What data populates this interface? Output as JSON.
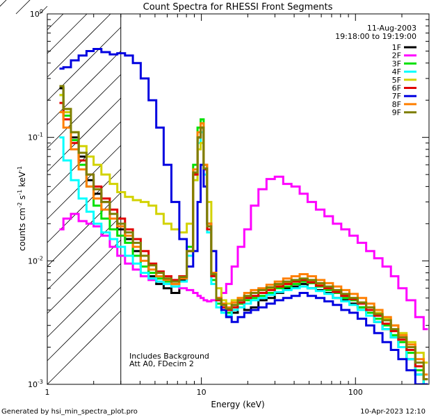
{
  "chart_data": {
    "type": "line",
    "title": "Count Spectra for RHESSI Front Segments",
    "xlabel": "Energy (keV)",
    "ylabel": "counts cm-2 s-1 keV-1",
    "ylabel_parts": [
      "counts cm",
      "-2",
      " s",
      "-1",
      " keV",
      "-1"
    ],
    "x_scale": "log",
    "y_scale": "log",
    "xlim": [
      1.0,
      300.0
    ],
    "ylim": [
      0.001,
      1.0
    ],
    "x_ticks": [
      {
        "value": 1,
        "label": "1"
      },
      {
        "value": 10,
        "label": "10"
      },
      {
        "value": 100,
        "label": "100"
      }
    ],
    "y_ticks": [
      {
        "value": 1.0,
        "base": "10",
        "exp": "0"
      },
      {
        "value": 0.1,
        "base": "10",
        "exp": "-1"
      },
      {
        "value": 0.01,
        "base": "10",
        "exp": "-2"
      },
      {
        "value": 0.001,
        "base": "10",
        "exp": "-3"
      }
    ],
    "date_label": "11-Aug-2003",
    "time_range_label": "19:18:00 to 19:19:00",
    "hatched_region": [
      1.0,
      3.0
    ],
    "annotations": [
      "Includes Background",
      "Att A0, FDecim 2"
    ],
    "series": [
      {
        "name": "1F",
        "color": "#000000",
        "x": [
          1.2,
          1.35,
          1.5,
          1.7,
          1.9,
          2.1,
          2.4,
          2.7,
          3.0,
          3.4,
          3.8,
          4.3,
          4.8,
          5.4,
          6.0,
          6.8,
          7.6,
          8.5,
          9.2,
          9.7,
          10.1,
          10.6,
          11.2,
          12,
          13,
          14,
          15,
          16.5,
          18,
          20,
          22,
          25,
          28,
          32,
          36,
          41,
          46,
          52,
          59,
          67,
          76,
          86,
          97,
          110,
          125,
          140,
          160,
          180,
          200,
          230,
          260,
          295
        ],
        "y": [
          0.25,
          0.16,
          0.1,
          0.07,
          0.045,
          0.035,
          0.03,
          0.022,
          0.018,
          0.015,
          0.012,
          0.009,
          0.0075,
          0.0065,
          0.006,
          0.0055,
          0.007,
          0.012,
          0.05,
          0.1,
          0.12,
          0.06,
          0.02,
          0.008,
          0.005,
          0.0045,
          0.004,
          0.0038,
          0.0045,
          0.004,
          0.0042,
          0.0048,
          0.005,
          0.0055,
          0.006,
          0.0062,
          0.0065,
          0.006,
          0.0058,
          0.0055,
          0.005,
          0.0048,
          0.0045,
          0.0042,
          0.0038,
          0.0032,
          0.0028,
          0.0024,
          0.002,
          0.0016,
          0.0012,
          0.001
        ]
      },
      {
        "name": "2F",
        "color": "#ff00ff",
        "x": [
          1.2,
          1.35,
          1.5,
          1.7,
          1.9,
          2.1,
          2.4,
          2.7,
          3.0,
          3.4,
          3.8,
          4.3,
          4.8,
          5.4,
          6.0,
          6.8,
          7.6,
          8.5,
          9.2,
          9.7,
          10.1,
          10.6,
          11.2,
          12,
          13,
          14,
          15,
          16.5,
          18,
          20,
          22,
          25,
          28,
          32,
          36,
          41,
          46,
          52,
          59,
          67,
          76,
          86,
          97,
          110,
          125,
          140,
          160,
          180,
          200,
          230,
          260,
          295
        ],
        "y": [
          0.018,
          0.022,
          0.024,
          0.021,
          0.02,
          0.019,
          0.016,
          0.013,
          0.011,
          0.0095,
          0.0085,
          0.0075,
          0.007,
          0.0068,
          0.0065,
          0.0062,
          0.006,
          0.0058,
          0.0055,
          0.0052,
          0.005,
          0.0048,
          0.0047,
          0.0048,
          0.005,
          0.0055,
          0.0065,
          0.009,
          0.013,
          0.018,
          0.028,
          0.038,
          0.046,
          0.048,
          0.042,
          0.04,
          0.035,
          0.03,
          0.026,
          0.023,
          0.02,
          0.018,
          0.016,
          0.014,
          0.012,
          0.0105,
          0.009,
          0.0075,
          0.006,
          0.0048,
          0.0035,
          0.0028
        ]
      },
      {
        "name": "3F",
        "color": "#00e000",
        "x": [
          1.2,
          1.35,
          1.5,
          1.7,
          1.9,
          2.1,
          2.4,
          2.7,
          3.0,
          3.4,
          3.8,
          4.3,
          4.8,
          5.4,
          6.0,
          6.8,
          7.6,
          8.5,
          9.2,
          9.7,
          10.1,
          10.6,
          11.2,
          12,
          13,
          14,
          15,
          16.5,
          18,
          20,
          22,
          25,
          28,
          32,
          36,
          41,
          46,
          52,
          59,
          67,
          76,
          86,
          97,
          110,
          125,
          140,
          160,
          180,
          200,
          230,
          260,
          295
        ],
        "y": [
          0.22,
          0.15,
          0.095,
          0.06,
          0.04,
          0.028,
          0.022,
          0.018,
          0.016,
          0.014,
          0.011,
          0.009,
          0.008,
          0.0072,
          0.0068,
          0.0065,
          0.0075,
          0.013,
          0.06,
          0.12,
          0.14,
          0.06,
          0.02,
          0.007,
          0.0045,
          0.004,
          0.0038,
          0.0042,
          0.0045,
          0.0048,
          0.005,
          0.0052,
          0.0055,
          0.006,
          0.0062,
          0.0065,
          0.0068,
          0.0066,
          0.0062,
          0.0058,
          0.0055,
          0.005,
          0.0048,
          0.0042,
          0.0038,
          0.0034,
          0.003,
          0.0025,
          0.0022,
          0.0018,
          0.0013,
          0.001
        ]
      },
      {
        "name": "4F",
        "color": "#00ffff",
        "x": [
          1.2,
          1.35,
          1.5,
          1.7,
          1.9,
          2.1,
          2.4,
          2.7,
          3.0,
          3.4,
          3.8,
          4.3,
          4.8,
          5.4,
          6.0,
          6.8,
          7.6,
          8.5,
          9.2,
          9.7,
          10.1,
          10.6,
          11.2,
          12,
          13,
          14,
          15,
          16.5,
          18,
          20,
          22,
          25,
          28,
          32,
          36,
          41,
          46,
          52,
          59,
          67,
          76,
          86,
          97,
          110,
          125,
          140,
          160,
          180,
          200,
          230,
          260,
          295
        ],
        "y": [
          0.1,
          0.065,
          0.045,
          0.032,
          0.025,
          0.02,
          0.017,
          0.015,
          0.013,
          0.011,
          0.0095,
          0.008,
          0.0072,
          0.0068,
          0.0065,
          0.0062,
          0.0068,
          0.011,
          0.045,
          0.09,
          0.11,
          0.05,
          0.017,
          0.0065,
          0.0042,
          0.0038,
          0.0036,
          0.004,
          0.0042,
          0.0045,
          0.0048,
          0.005,
          0.0053,
          0.0056,
          0.0058,
          0.006,
          0.0062,
          0.006,
          0.0057,
          0.0054,
          0.005,
          0.0047,
          0.0044,
          0.004,
          0.0036,
          0.0032,
          0.0028,
          0.0024,
          0.002,
          0.0016,
          0.0012,
          0.001
        ]
      },
      {
        "name": "5F",
        "color": "#d2d200",
        "x": [
          1.2,
          1.35,
          1.5,
          1.7,
          1.9,
          2.1,
          2.4,
          2.7,
          3.0,
          3.4,
          3.8,
          4.3,
          4.8,
          5.4,
          6.0,
          6.8,
          7.6,
          8.5,
          9.2,
          9.7,
          10.1,
          10.6,
          11.2,
          12,
          13,
          14,
          15,
          16.5,
          18,
          20,
          22,
          25,
          28,
          32,
          36,
          41,
          46,
          52,
          59,
          67,
          76,
          86,
          97,
          110,
          125,
          140,
          160,
          180,
          200,
          230,
          260,
          295
        ],
        "y": [
          0.22,
          0.16,
          0.11,
          0.085,
          0.07,
          0.06,
          0.05,
          0.042,
          0.036,
          0.033,
          0.031,
          0.03,
          0.028,
          0.024,
          0.02,
          0.018,
          0.017,
          0.02,
          0.045,
          0.08,
          0.09,
          0.06,
          0.03,
          0.012,
          0.006,
          0.0048,
          0.0045,
          0.0048,
          0.005,
          0.0052,
          0.0055,
          0.0058,
          0.006,
          0.0063,
          0.0066,
          0.0068,
          0.007,
          0.0068,
          0.0065,
          0.006,
          0.0057,
          0.0054,
          0.005,
          0.0046,
          0.0042,
          0.0038,
          0.0034,
          0.003,
          0.0026,
          0.0022,
          0.0018,
          0.0015
        ]
      },
      {
        "name": "6F",
        "color": "#e00000",
        "x": [
          1.2,
          1.35,
          1.5,
          1.7,
          1.9,
          2.1,
          2.4,
          2.7,
          3.0,
          3.4,
          3.8,
          4.3,
          4.8,
          5.4,
          6.0,
          6.8,
          7.6,
          8.5,
          9.2,
          9.7,
          10.1,
          10.6,
          11.2,
          12,
          13,
          14,
          15,
          16.5,
          18,
          20,
          22,
          25,
          28,
          32,
          36,
          41,
          46,
          52,
          59,
          67,
          76,
          86,
          97,
          110,
          125,
          140,
          160,
          180,
          200,
          230,
          260,
          295
        ],
        "y": [
          0.19,
          0.14,
          0.09,
          0.065,
          0.05,
          0.04,
          0.032,
          0.026,
          0.022,
          0.018,
          0.015,
          0.012,
          0.0095,
          0.0082,
          0.0075,
          0.007,
          0.0075,
          0.012,
          0.05,
          0.1,
          0.12,
          0.055,
          0.018,
          0.0075,
          0.0048,
          0.0042,
          0.004,
          0.0042,
          0.0046,
          0.005,
          0.0052,
          0.0055,
          0.0058,
          0.0062,
          0.0065,
          0.0068,
          0.007,
          0.0067,
          0.0063,
          0.006,
          0.0056,
          0.0052,
          0.0049,
          0.0045,
          0.004,
          0.0036,
          0.0031,
          0.0027,
          0.0023,
          0.0019,
          0.0014,
          0.0011
        ]
      },
      {
        "name": "7F",
        "color": "#0000e0",
        "x": [
          1.2,
          1.35,
          1.5,
          1.7,
          1.9,
          2.1,
          2.4,
          2.7,
          3.0,
          3.4,
          3.8,
          4.3,
          4.8,
          5.4,
          6.0,
          6.8,
          7.6,
          8.5,
          9.2,
          9.7,
          10.1,
          10.6,
          11.2,
          12,
          13,
          14,
          15,
          16.5,
          18,
          20,
          22,
          25,
          28,
          32,
          36,
          41,
          46,
          52,
          59,
          67,
          76,
          86,
          97,
          110,
          125,
          140,
          160,
          180,
          200,
          230,
          260,
          295
        ],
        "y": [
          0.36,
          0.37,
          0.42,
          0.46,
          0.5,
          0.52,
          0.49,
          0.47,
          0.48,
          0.46,
          0.4,
          0.3,
          0.2,
          0.12,
          0.06,
          0.03,
          0.015,
          0.009,
          0.012,
          0.03,
          0.06,
          0.04,
          0.02,
          0.012,
          0.005,
          0.004,
          0.0035,
          0.0032,
          0.0035,
          0.0038,
          0.004,
          0.0042,
          0.0045,
          0.0048,
          0.005,
          0.0052,
          0.0055,
          0.0052,
          0.005,
          0.0047,
          0.0044,
          0.004,
          0.0038,
          0.0034,
          0.003,
          0.0026,
          0.0022,
          0.0019,
          0.0016,
          0.0013,
          0.001,
          0.001
        ]
      },
      {
        "name": "8F",
        "color": "#ff7f00",
        "x": [
          1.2,
          1.35,
          1.5,
          1.7,
          1.9,
          2.1,
          2.4,
          2.7,
          3.0,
          3.4,
          3.8,
          4.3,
          4.8,
          5.4,
          6.0,
          6.8,
          7.6,
          8.5,
          9.2,
          9.7,
          10.1,
          10.6,
          11.2,
          12,
          13,
          14,
          15,
          16.5,
          18,
          20,
          22,
          25,
          28,
          32,
          36,
          41,
          46,
          52,
          59,
          67,
          76,
          86,
          97,
          110,
          125,
          140,
          160,
          180,
          200,
          230,
          260,
          295
        ],
        "y": [
          0.16,
          0.12,
          0.08,
          0.055,
          0.04,
          0.032,
          0.026,
          0.022,
          0.019,
          0.016,
          0.013,
          0.01,
          0.0085,
          0.0075,
          0.007,
          0.0065,
          0.0072,
          0.012,
          0.055,
          0.11,
          0.13,
          0.06,
          0.02,
          0.008,
          0.005,
          0.0045,
          0.0042,
          0.0046,
          0.005,
          0.0055,
          0.0058,
          0.006,
          0.0064,
          0.0068,
          0.0072,
          0.0075,
          0.0078,
          0.0075,
          0.007,
          0.0066,
          0.0062,
          0.0058,
          0.0054,
          0.005,
          0.0045,
          0.004,
          0.0035,
          0.003,
          0.0025,
          0.0021,
          0.0016,
          0.0012
        ]
      },
      {
        "name": "9F",
        "color": "#7f7f00",
        "x": [
          1.2,
          1.35,
          1.5,
          1.7,
          1.9,
          2.1,
          2.4,
          2.7,
          3.0,
          3.4,
          3.8,
          4.3,
          4.8,
          5.4,
          6.0,
          6.8,
          7.6,
          8.5,
          9.2,
          9.7,
          10.1,
          10.6,
          11.2,
          12,
          13,
          14,
          15,
          16.5,
          18,
          20,
          22,
          25,
          28,
          32,
          36,
          41,
          46,
          52,
          59,
          67,
          76,
          86,
          97,
          110,
          125,
          140,
          160,
          180,
          200,
          230,
          260,
          295
        ],
        "y": [
          0.26,
          0.17,
          0.11,
          0.075,
          0.05,
          0.038,
          0.03,
          0.024,
          0.02,
          0.017,
          0.014,
          0.011,
          0.0092,
          0.008,
          0.0072,
          0.0068,
          0.0074,
          0.012,
          0.052,
          0.1,
          0.12,
          0.056,
          0.019,
          0.0078,
          0.0049,
          0.0044,
          0.0041,
          0.0044,
          0.0048,
          0.0052,
          0.0055,
          0.0058,
          0.0061,
          0.0065,
          0.0068,
          0.007,
          0.0072,
          0.007,
          0.0066,
          0.0062,
          0.0058,
          0.0054,
          0.005,
          0.0046,
          0.0042,
          0.0037,
          0.0033,
          0.0028,
          0.0024,
          0.002,
          0.0015,
          0.0011
        ]
      }
    ]
  },
  "footer": {
    "generated_by": "Generated by hsi_min_spectra_plot.pro",
    "timestamp": "10-Apr-2023 12:10"
  }
}
